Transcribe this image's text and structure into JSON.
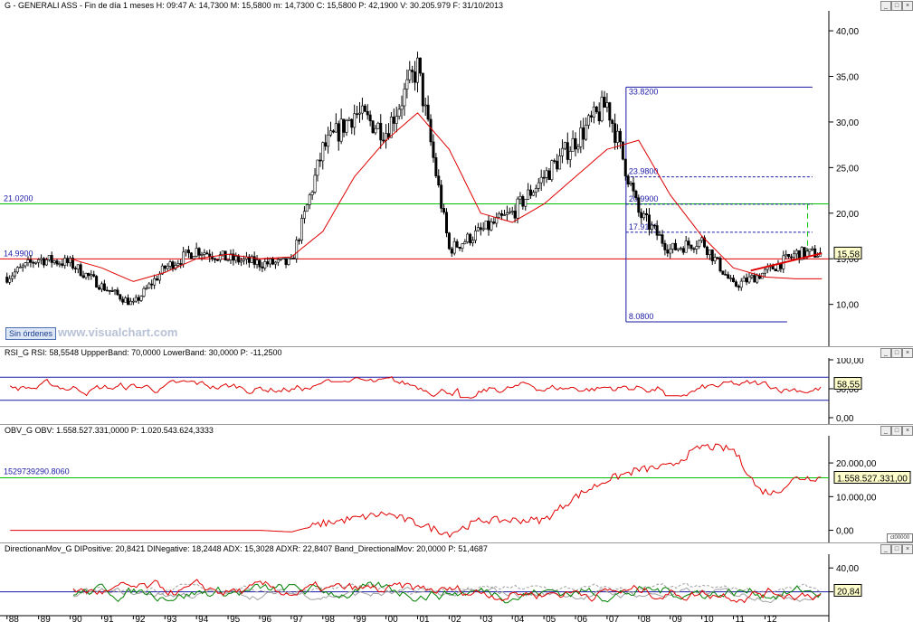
{
  "panels": {
    "price": {
      "header": "G - GENERALI ASS  - Fin de día 1 meses H: 09:47 A: 14,7300 M: 15,5800 m: 14,7300 C: 15,5800 P: 42,1900 V: 30.205.979 F: 31/10/2013"
    },
    "rsi": {
      "header": "RSI_G  RSI: 58,5548  UppperBand: 70,0000  LowerBand: 30,0000  P: -11,2500"
    },
    "obv": {
      "header": "OBV_G  OBV: 1.558.527.331,0000  P: 1.020.543.624,3333"
    },
    "dmi": {
      "header": "DirectionanMov_G  DIPositive: 20,8421  DINegative: 18,2448  ADX: 15,3028  ADXR: 22,8407  Band_DirectionalMov: 20,0000  P: 51,4687"
    }
  },
  "price_annotations": {
    "hline_high": "21.0200",
    "hline_low": "14.9900",
    "fib_top": "33.8200",
    "fib_bottom": "8.0800",
    "fib_levels": [
      "23.9800",
      "20.9900",
      "17.9100"
    ]
  },
  "badges": {
    "price": "15,58",
    "rsi": "58,55",
    "obv": "1.558.527.331,00",
    "dmi": "20,84"
  },
  "buttons": {
    "sin_ordenes": "Sin órdenes",
    "zoom": "ct00000"
  },
  "watermark": "www.visualchart.com",
  "colors": {
    "price": "#000000",
    "ma": "#e00000",
    "green_line": "#00c000",
    "blue": "#1a1aa6",
    "red": "#e00000",
    "dmi_green": "#008000",
    "grey": "#a0a0a0"
  },
  "chart_data": [
    {
      "type": "candlestick",
      "title": "G - GENERALI ASS",
      "x_tick_labels": [
        "88",
        "89",
        "90",
        "91",
        "92",
        "93",
        "94",
        "95",
        "96",
        "97",
        "98",
        "99",
        "00",
        "01",
        "02",
        "03",
        "04",
        "05",
        "06",
        "07",
        "08",
        "09",
        "10",
        "11",
        "12"
      ],
      "y_tick_labels": [
        "10,00",
        "15,00",
        "20,00",
        "25,00",
        "30,00",
        "35,00",
        "40,00"
      ],
      "ylim": [
        6,
        41
      ],
      "close_by_year": {
        "years": [
          1988,
          1989,
          1990,
          1991,
          1992,
          1993,
          1994,
          1995,
          1996,
          1997,
          1998,
          1999,
          2000,
          2001,
          2002,
          2003,
          2004,
          2005,
          2006,
          2007,
          2008,
          2009,
          2010,
          2011,
          2012,
          2013
        ],
        "values": [
          13,
          15,
          14.5,
          12,
          10,
          14,
          16,
          15,
          14.5,
          14.5,
          27,
          31,
          29,
          36,
          16,
          18,
          20,
          24,
          28,
          32,
          20,
          16,
          17,
          12,
          13.5,
          15.58
        ]
      },
      "moving_average_by_year": {
        "years": [
          1988,
          1989,
          1990,
          1991,
          1992,
          1993,
          1994,
          1995,
          1996,
          1997,
          1998,
          1999,
          2000,
          2001,
          2002,
          2003,
          2004,
          2005,
          2006,
          2007,
          2008,
          2009,
          2010,
          2011,
          2012,
          2013
        ],
        "values": [
          null,
          null,
          15,
          14,
          12.5,
          13.5,
          15,
          15.5,
          15,
          15.2,
          18,
          24,
          28,
          31,
          27,
          20,
          19,
          21,
          24,
          27,
          28,
          22,
          17.5,
          14,
          13,
          12.8
        ]
      },
      "horizontal_lines": [
        21.02,
        14.99
      ],
      "fibonacci": {
        "top": 33.82,
        "bottom": 8.08,
        "levels": [
          23.98,
          20.99,
          17.91
        ]
      },
      "last_value": 15.58
    },
    {
      "type": "line",
      "title": "RSI_G",
      "y_tick_labels": [
        "100,00",
        "50,00",
        "0,00"
      ],
      "ylim": [
        0,
        100
      ],
      "bands": [
        70,
        30
      ],
      "last_value": 58.55
    },
    {
      "type": "line",
      "title": "OBV_G",
      "y_tick_labels": [
        "20.000,00",
        "10.000,00",
        "0,00"
      ],
      "ylim": [
        -2000,
        27000
      ],
      "reference_line": {
        "label": "1529739290.8060"
      },
      "series_by_year": {
        "years": [
          1988,
          1992,
          1996,
          1997,
          1998,
          2000,
          2002,
          2003,
          2005,
          2006,
          2007,
          2008,
          2009,
          2010,
          2011,
          2011.8,
          2012.3,
          2013
        ],
        "values": [
          0,
          0,
          0,
          -500,
          2000,
          5000,
          -1000,
          3000,
          3000,
          10000,
          15000,
          18000,
          19000,
          25000,
          24000,
          12000,
          11000,
          15585
        ]
      },
      "last_value": 15585.27
    },
    {
      "type": "line",
      "title": "DirectionanMov_G",
      "y_tick_labels": [
        "40,00",
        "20,00"
      ],
      "ylim": [
        0,
        50
      ],
      "band": 20,
      "last_value": 20.84
    }
  ]
}
